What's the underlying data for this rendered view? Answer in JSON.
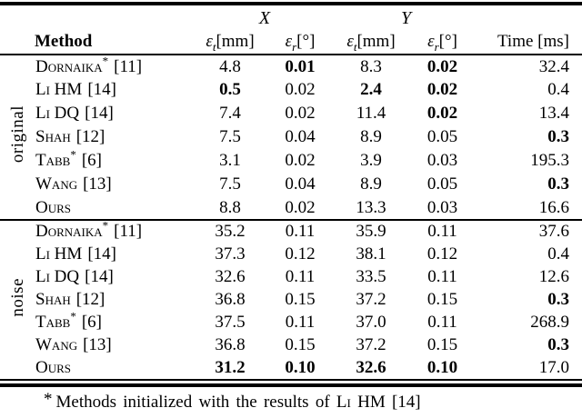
{
  "page": {
    "background": "#ffffff",
    "text_color": "#000000"
  },
  "table": {
    "groups": {
      "x": "X",
      "y": "Y"
    },
    "headers": {
      "method": "Method",
      "eps_t": {
        "sym": "ε",
        "sub": "t",
        "unit": "[mm]"
      },
      "eps_r": {
        "sym": "ε",
        "sub": "r",
        "unit": "[°]"
      },
      "time": "Time [ms]"
    },
    "blocks": [
      {
        "label": "original",
        "rows": [
          {
            "name": "Dornaika",
            "star": "*",
            "ref": "[11]",
            "et_x": "4.8",
            "er_x": "0.01",
            "et_y": "8.3",
            "er_y": "0.02",
            "time": "32.4"
          },
          {
            "name": "Li HM",
            "star": "",
            "ref": "[14]",
            "et_x": "0.5",
            "er_x": "0.02",
            "et_y": "2.4",
            "er_y": "0.02",
            "time": "0.4"
          },
          {
            "name": "Li DQ",
            "star": "",
            "ref": "[14]",
            "et_x": "7.4",
            "er_x": "0.02",
            "et_y": "11.4",
            "er_y": "0.02",
            "time": "13.4"
          },
          {
            "name": "Shah",
            "star": "",
            "ref": "[12]",
            "et_x": "7.5",
            "er_x": "0.04",
            "et_y": "8.9",
            "er_y": "0.05",
            "time": "0.3"
          },
          {
            "name": "Tabb",
            "star": "*",
            "ref": "[6]",
            "et_x": "3.1",
            "er_x": "0.02",
            "et_y": "3.9",
            "er_y": "0.03",
            "time": "195.3"
          },
          {
            "name": "Wang",
            "star": "",
            "ref": "[13]",
            "et_x": "7.5",
            "er_x": "0.04",
            "et_y": "8.9",
            "er_y": "0.05",
            "time": "0.3"
          },
          {
            "name": "Ours",
            "star": "",
            "ref": "",
            "et_x": "8.8",
            "er_x": "0.02",
            "et_y": "13.3",
            "er_y": "0.03",
            "time": "16.6"
          }
        ]
      },
      {
        "label": "noise",
        "rows": [
          {
            "name": "Dornaika",
            "star": "*",
            "ref": "[11]",
            "et_x": "35.2",
            "er_x": "0.11",
            "et_y": "35.9",
            "er_y": "0.11",
            "time": "37.6"
          },
          {
            "name": "Li HM",
            "star": "",
            "ref": "[14]",
            "et_x": "37.3",
            "er_x": "0.12",
            "et_y": "38.1",
            "er_y": "0.12",
            "time": "0.4"
          },
          {
            "name": "Li DQ",
            "star": "",
            "ref": "[14]",
            "et_x": "32.6",
            "er_x": "0.11",
            "et_y": "33.5",
            "er_y": "0.11",
            "time": "12.6"
          },
          {
            "name": "Shah",
            "star": "",
            "ref": "[12]",
            "et_x": "36.8",
            "er_x": "0.15",
            "et_y": "37.2",
            "er_y": "0.15",
            "time": "0.3"
          },
          {
            "name": "Tabb",
            "star": "*",
            "ref": "[6]",
            "et_x": "37.5",
            "er_x": "0.11",
            "et_y": "37.0",
            "er_y": "0.11",
            "time": "268.9"
          },
          {
            "name": "Wang",
            "star": "",
            "ref": "[13]",
            "et_x": "36.8",
            "er_x": "0.15",
            "et_y": "37.2",
            "er_y": "0.15",
            "time": "0.3"
          },
          {
            "name": "Ours",
            "star": "",
            "ref": "",
            "et_x": "31.2",
            "er_x": "0.10",
            "et_y": "32.6",
            "er_y": "0.10",
            "time": "17.0"
          }
        ]
      }
    ],
    "footnote": {
      "marker": "*",
      "prefix": "Methods initialized with the results of",
      "method": "Li HM",
      "ref": "[14]"
    }
  }
}
